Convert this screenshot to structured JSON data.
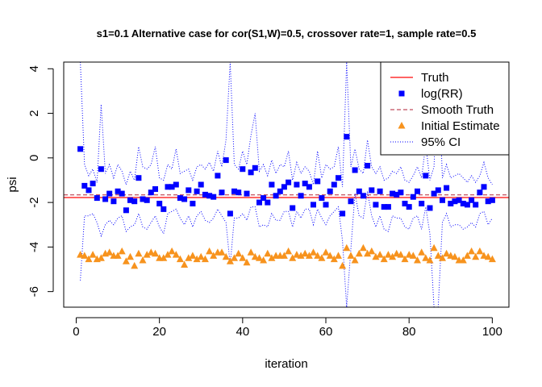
{
  "chart_data": {
    "type": "scatter",
    "title": "s1=0.1 Alternative case for cor(S1,W)=0.5, crossover rate=1, sample rate=0.5",
    "xlabel": "iteration",
    "ylabel": "psi",
    "xlim": [
      -3,
      104
    ],
    "ylim": [
      -6.7,
      4.3
    ],
    "x_ticks": [
      0,
      20,
      40,
      60,
      80,
      100
    ],
    "y_ticks": [
      4,
      2,
      0,
      -2,
      -4,
      -6
    ],
    "truth": -1.78,
    "smooth_truth": -1.66,
    "colors": {
      "truth": "#ff3030",
      "logrr": "#0000ff",
      "smooth": "#b22234",
      "initial": "#f7931e",
      "ci": "#0000ff",
      "axis": "#000000"
    },
    "legend": {
      "position": "top-right",
      "entries": [
        "Truth",
        "log(RR)",
        "Smooth Truth",
        "Initial Estimate",
        "95% CI"
      ]
    },
    "series": [
      {
        "name": "log(RR)",
        "marker": "square",
        "x": [
          1,
          2,
          3,
          4,
          5,
          6,
          7,
          8,
          9,
          10,
          11,
          12,
          13,
          14,
          15,
          16,
          17,
          18,
          19,
          20,
          21,
          22,
          23,
          24,
          25,
          26,
          27,
          28,
          29,
          30,
          31,
          32,
          33,
          34,
          35,
          36,
          37,
          38,
          39,
          40,
          41,
          42,
          43,
          44,
          45,
          46,
          47,
          48,
          49,
          50,
          51,
          52,
          53,
          54,
          55,
          56,
          57,
          58,
          59,
          60,
          61,
          62,
          63,
          64,
          65,
          66,
          67,
          68,
          69,
          70,
          71,
          72,
          73,
          74,
          75,
          76,
          77,
          78,
          79,
          80,
          81,
          82,
          83,
          84,
          85,
          86,
          87,
          88,
          89,
          90,
          91,
          92,
          93,
          94,
          95,
          96,
          97,
          98,
          99,
          100
        ],
        "values": [
          0.4,
          -1.25,
          -1.45,
          -1.15,
          -1.8,
          -0.5,
          -1.85,
          -1.6,
          -1.95,
          -1.5,
          -1.6,
          -2.35,
          -1.9,
          -1.95,
          -0.9,
          -1.85,
          -1.9,
          -1.55,
          -1.4,
          -2.05,
          -2.3,
          -1.3,
          -1.3,
          -1.2,
          -1.8,
          -1.85,
          -1.45,
          -2.05,
          -1.5,
          -1.2,
          -1.65,
          -1.7,
          -1.75,
          -0.8,
          -1.55,
          -0.1,
          -2.5,
          -1.5,
          -1.55,
          -0.5,
          -1.6,
          -0.65,
          -0.45,
          -2.0,
          -1.8,
          -2.0,
          -1.2,
          -1.7,
          -1.5,
          -1.3,
          -1.1,
          -2.25,
          -1.2,
          -1.7,
          -1.15,
          -1.3,
          -2.1,
          -1.05,
          -1.8,
          -2.1,
          -1.5,
          -1.2,
          -0.9,
          -2.5,
          0.95,
          -1.95,
          -0.55,
          -1.5,
          -1.7,
          -0.35,
          -1.45,
          -2.1,
          -1.5,
          -2.2,
          -2.2,
          -1.6,
          -1.65,
          -1.55,
          -2.05,
          -2.2,
          -1.75,
          -1.5,
          -2.05,
          -0.8,
          -2.25,
          -1.6,
          -1.45,
          -1.9,
          -1.35,
          -2.05,
          -1.95,
          -1.9,
          -2.05,
          -2.1,
          -1.9,
          -2.1,
          -1.55,
          -1.3,
          -1.95,
          -1.9
        ]
      },
      {
        "name": "Initial Estimate",
        "marker": "triangle",
        "x": [
          1,
          2,
          3,
          4,
          5,
          6,
          7,
          8,
          9,
          10,
          11,
          12,
          13,
          14,
          15,
          16,
          17,
          18,
          19,
          20,
          21,
          22,
          23,
          24,
          25,
          26,
          27,
          28,
          29,
          30,
          31,
          32,
          33,
          34,
          35,
          36,
          37,
          38,
          39,
          40,
          41,
          42,
          43,
          44,
          45,
          46,
          47,
          48,
          49,
          50,
          51,
          52,
          53,
          54,
          55,
          56,
          57,
          58,
          59,
          60,
          61,
          62,
          63,
          64,
          65,
          66,
          67,
          68,
          69,
          70,
          71,
          72,
          73,
          74,
          75,
          76,
          77,
          78,
          79,
          80,
          81,
          82,
          83,
          84,
          85,
          86,
          87,
          88,
          89,
          90,
          91,
          92,
          93,
          94,
          95,
          96,
          97,
          98,
          99,
          100
        ],
        "values": [
          -4.35,
          -4.4,
          -4.55,
          -4.35,
          -4.55,
          -4.5,
          -4.3,
          -4.25,
          -4.4,
          -4.4,
          -4.2,
          -4.65,
          -4.45,
          -4.85,
          -4.3,
          -4.6,
          -4.35,
          -4.25,
          -4.3,
          -4.5,
          -4.5,
          -4.35,
          -4.2,
          -4.35,
          -4.55,
          -4.8,
          -4.5,
          -4.4,
          -4.55,
          -4.45,
          -4.55,
          -4.2,
          -4.4,
          -4.25,
          -4.25,
          -4.45,
          -4.65,
          -4.5,
          -4.3,
          -4.5,
          -4.7,
          -4.25,
          -4.45,
          -4.5,
          -4.6,
          -4.3,
          -4.5,
          -4.4,
          -4.4,
          -4.4,
          -4.2,
          -4.5,
          -4.35,
          -4.4,
          -4.3,
          -4.4,
          -4.25,
          -4.4,
          -4.5,
          -4.25,
          -4.4,
          -4.55,
          -4.4,
          -4.85,
          -4.05,
          -4.4,
          -4.6,
          -4.3,
          -4.05,
          -4.3,
          -4.2,
          -4.45,
          -4.35,
          -4.55,
          -4.35,
          -4.45,
          -4.3,
          -4.35,
          -4.55,
          -4.35,
          -4.4,
          -4.6,
          -4.25,
          -4.5,
          -4.6,
          -4.05,
          -4.4,
          -4.5,
          -4.3,
          -4.4,
          -4.45,
          -4.6,
          -4.6,
          -4.4,
          -4.2,
          -4.45,
          -4.2,
          -4.4,
          -4.45,
          -4.55
        ]
      },
      {
        "name": "95% CI upper",
        "line": "dotted",
        "x": [
          1,
          2,
          3,
          4,
          5,
          6,
          7,
          8,
          9,
          10,
          11,
          12,
          13,
          14,
          15,
          16,
          17,
          18,
          19,
          20,
          21,
          22,
          23,
          24,
          25,
          26,
          27,
          28,
          29,
          30,
          31,
          32,
          33,
          34,
          35,
          36,
          37,
          38,
          39,
          40,
          41,
          42,
          43,
          44,
          45,
          46,
          47,
          48,
          49,
          50,
          51,
          52,
          53,
          54,
          55,
          56,
          57,
          58,
          59,
          60,
          61,
          62,
          63,
          64,
          65,
          66,
          67,
          68,
          69,
          70,
          71,
          72,
          73,
          74,
          75,
          76,
          77,
          78,
          79,
          80,
          81,
          82,
          83,
          84,
          85,
          86,
          87,
          88,
          89,
          90,
          91,
          92,
          93,
          94,
          95,
          96,
          97,
          98,
          99,
          100
        ],
        "values": [
          4.3,
          -0.3,
          -0.8,
          -0.5,
          -1.1,
          2.4,
          -0.7,
          -0.3,
          -0.9,
          -0.3,
          -0.6,
          -1.2,
          -0.6,
          -1.0,
          0.5,
          -0.4,
          -0.5,
          -0.3,
          0.5,
          -0.9,
          -1.0,
          -0.3,
          -0.5,
          0.4,
          -0.7,
          -0.6,
          -0.5,
          -1.0,
          -0.4,
          -0.3,
          -0.5,
          -0.2,
          -0.6,
          0.3,
          -0.4,
          0.8,
          4.3,
          -0.3,
          -0.5,
          0.3,
          -0.3,
          1.0,
          2.0,
          -0.6,
          -0.3,
          -0.8,
          -0.1,
          -0.7,
          -0.3,
          -0.4,
          0.3,
          -1.0,
          -0.2,
          -0.7,
          -0.4,
          -0.6,
          -1.2,
          0.3,
          -0.9,
          -0.3,
          -0.5,
          -0.4,
          0.5,
          -1.3,
          4.3,
          -0.4,
          0.4,
          -0.5,
          -0.7,
          0.8,
          -0.4,
          -0.7,
          -0.4,
          -1.0,
          -0.9,
          -0.6,
          -0.7,
          -0.4,
          -1.0,
          -1.1,
          -0.8,
          -0.4,
          -0.9,
          0.6,
          -1.0,
          -0.4,
          4.3,
          -0.9,
          -0.3,
          -0.9,
          -0.8,
          -0.7,
          -0.9,
          -1.1,
          -0.8,
          -1.1,
          -0.8,
          -0.2,
          -0.9,
          -1.2
        ]
      },
      {
        "name": "95% CI lower",
        "line": "dotted",
        "x": [
          1,
          2,
          3,
          4,
          5,
          6,
          7,
          8,
          9,
          10,
          11,
          12,
          13,
          14,
          15,
          16,
          17,
          18,
          19,
          20,
          21,
          22,
          23,
          24,
          25,
          26,
          27,
          28,
          29,
          30,
          31,
          32,
          33,
          34,
          35,
          36,
          37,
          38,
          39,
          40,
          41,
          42,
          43,
          44,
          45,
          46,
          47,
          48,
          49,
          50,
          51,
          52,
          53,
          54,
          55,
          56,
          57,
          58,
          59,
          60,
          61,
          62,
          63,
          64,
          65,
          66,
          67,
          68,
          69,
          70,
          71,
          72,
          73,
          74,
          75,
          76,
          77,
          78,
          79,
          80,
          81,
          82,
          83,
          84,
          85,
          86,
          87,
          88,
          89,
          90,
          91,
          92,
          93,
          94,
          95,
          96,
          97,
          98,
          99,
          100
        ],
        "values": [
          -5.5,
          -2.6,
          -2.6,
          -2.5,
          -2.9,
          -3.5,
          -3.0,
          -2.8,
          -3.0,
          -2.7,
          -2.6,
          -3.3,
          -3.1,
          -3.0,
          -2.5,
          -3.1,
          -3.2,
          -2.9,
          -2.6,
          -3.1,
          -3.4,
          -2.5,
          -2.4,
          -2.3,
          -2.7,
          -3.0,
          -2.6,
          -3.1,
          -2.6,
          -2.4,
          -2.8,
          -2.9,
          -2.7,
          -2.3,
          -2.6,
          -2.9,
          -4.8,
          -2.7,
          -2.7,
          -2.5,
          -2.8,
          -2.2,
          -2.2,
          -3.1,
          -3.0,
          -3.1,
          -2.5,
          -2.8,
          -2.8,
          -2.4,
          -2.4,
          -3.1,
          -2.4,
          -2.7,
          -2.3,
          -2.3,
          -3.0,
          -2.3,
          -2.7,
          -3.0,
          -2.6,
          -2.4,
          -2.2,
          -3.7,
          -6.7,
          -4.1,
          -1.6,
          -2.6,
          -2.7,
          -1.5,
          -2.6,
          -3.1,
          -2.6,
          -3.2,
          -3.3,
          -2.6,
          -2.7,
          -2.7,
          -3.1,
          -3.2,
          -2.7,
          -2.6,
          -3.2,
          -2.2,
          -3.4,
          -6.7,
          -6.7,
          -2.9,
          -2.5,
          -3.1,
          -3.0,
          -3.0,
          -3.2,
          -3.1,
          -2.9,
          -3.1,
          -2.5,
          -2.4,
          -3.0,
          -2.7
        ]
      }
    ]
  }
}
